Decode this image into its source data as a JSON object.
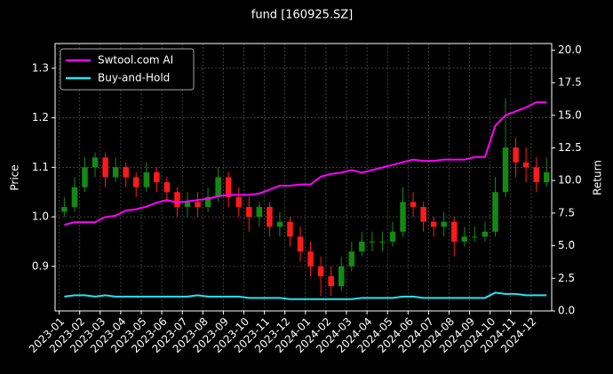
{
  "chart_data": {
    "type": "candlestick",
    "title": "fund [160925.SZ]",
    "y_label": "Price",
    "y2_label": "Return",
    "x": [
      0.25,
      0.75,
      1.25,
      1.75,
      2.25,
      2.75,
      3.25,
      3.75,
      4.25,
      4.75,
      5.25,
      5.75,
      6.25,
      6.75,
      7.25,
      7.75,
      8.25,
      8.75,
      9.25,
      9.75,
      10.25,
      10.75,
      11.25,
      11.75,
      12.25,
      12.75,
      13.25,
      13.75,
      14.25,
      14.75,
      15.25,
      15.75,
      16.25,
      16.75,
      17.25,
      17.75,
      18.25,
      18.75,
      19.25,
      19.75,
      20.25,
      20.75,
      21.25,
      21.75,
      22.25,
      22.75,
      23.25,
      23.75
    ],
    "open": [
      1.01,
      1.02,
      1.06,
      1.1,
      1.12,
      1.08,
      1.1,
      1.08,
      1.06,
      1.09,
      1.07,
      1.05,
      1.02,
      1.03,
      1.02,
      1.04,
      1.08,
      1.04,
      1.02,
      1.0,
      1.02,
      0.98,
      0.99,
      0.96,
      0.93,
      0.9,
      0.88,
      0.86,
      0.9,
      0.93,
      0.95,
      0.95,
      0.95,
      0.97,
      1.03,
      1.02,
      0.99,
      0.98,
      0.99,
      0.95,
      0.96,
      0.96,
      0.97,
      1.05,
      1.14,
      1.11,
      1.1,
      1.07
    ],
    "high": [
      1.04,
      1.08,
      1.12,
      1.13,
      1.13,
      1.12,
      1.11,
      1.09,
      1.11,
      1.1,
      1.08,
      1.06,
      1.05,
      1.05,
      1.06,
      1.1,
      1.09,
      1.06,
      1.04,
      1.03,
      1.03,
      1.01,
      1.0,
      0.98,
      0.95,
      0.92,
      0.9,
      0.92,
      0.95,
      0.97,
      0.97,
      0.97,
      0.99,
      1.06,
      1.05,
      1.03,
      1.0,
      1.01,
      1.0,
      0.98,
      0.98,
      0.99,
      1.08,
      1.24,
      1.16,
      1.14,
      1.12,
      1.12
    ],
    "low": [
      1.0,
      1.01,
      1.05,
      1.08,
      1.06,
      1.07,
      1.06,
      1.04,
      1.05,
      1.05,
      1.03,
      1.0,
      1.0,
      1.0,
      1.01,
      1.03,
      1.02,
      1.0,
      0.97,
      0.98,
      0.96,
      0.96,
      0.94,
      0.91,
      0.88,
      0.84,
      0.84,
      0.85,
      0.89,
      0.92,
      0.93,
      0.93,
      0.94,
      0.96,
      1.0,
      0.97,
      0.96,
      0.96,
      0.92,
      0.94,
      0.95,
      0.95,
      0.96,
      1.04,
      1.08,
      1.07,
      1.05,
      1.06
    ],
    "close": [
      1.02,
      1.06,
      1.1,
      1.12,
      1.08,
      1.1,
      1.08,
      1.06,
      1.09,
      1.07,
      1.05,
      1.02,
      1.03,
      1.02,
      1.04,
      1.08,
      1.04,
      1.02,
      1.0,
      1.02,
      0.98,
      0.99,
      0.96,
      0.93,
      0.9,
      0.88,
      0.86,
      0.9,
      0.93,
      0.95,
      0.95,
      0.95,
      0.97,
      1.03,
      1.02,
      0.99,
      0.98,
      0.99,
      0.95,
      0.96,
      0.96,
      0.97,
      1.05,
      1.14,
      1.11,
      1.1,
      1.07,
      1.09
    ],
    "up_color": "#138a13",
    "down_color": "#ff1a1a",
    "series": [
      {
        "name": "Swtool.com AI",
        "color": "#ff00ff",
        "axis": "y2",
        "values": [
          6.6,
          6.8,
          6.8,
          6.8,
          7.2,
          7.3,
          7.7,
          7.8,
          8.0,
          8.3,
          8.5,
          8.3,
          8.4,
          8.5,
          8.6,
          8.8,
          8.9,
          8.9,
          8.9,
          9.0,
          9.3,
          9.6,
          9.6,
          9.7,
          9.7,
          10.3,
          10.5,
          10.6,
          10.8,
          10.6,
          10.8,
          11.0,
          11.2,
          11.4,
          11.6,
          11.5,
          11.5,
          11.6,
          11.6,
          11.6,
          11.8,
          11.8,
          14.2,
          15.0,
          15.3,
          15.6,
          16.0,
          16.0
        ]
      },
      {
        "name": "Buy-and-Hold",
        "color": "#22e5f5",
        "axis": "y2",
        "values": [
          1.1,
          1.2,
          1.2,
          1.1,
          1.2,
          1.1,
          1.1,
          1.1,
          1.1,
          1.1,
          1.1,
          1.1,
          1.1,
          1.2,
          1.1,
          1.1,
          1.1,
          1.1,
          1.0,
          1.0,
          1.0,
          1.0,
          0.9,
          0.9,
          0.9,
          0.9,
          0.9,
          0.9,
          0.9,
          1.0,
          1.0,
          1.0,
          1.0,
          1.1,
          1.1,
          1.0,
          1.0,
          1.0,
          1.0,
          1.0,
          1.0,
          1.0,
          1.4,
          1.3,
          1.3,
          1.2,
          1.2,
          1.2
        ]
      }
    ],
    "xlim": [
      -0.2,
      24.0
    ],
    "xticks": [
      {
        "value": 0,
        "label": "2023-01"
      },
      {
        "value": 1,
        "label": "2023-02"
      },
      {
        "value": 2,
        "label": "2023-03"
      },
      {
        "value": 3,
        "label": "2023-04"
      },
      {
        "value": 4,
        "label": "2023-05"
      },
      {
        "value": 5,
        "label": "2023-06"
      },
      {
        "value": 6,
        "label": "2023-07"
      },
      {
        "value": 7,
        "label": "2023-08"
      },
      {
        "value": 8,
        "label": "2023-09"
      },
      {
        "value": 9,
        "label": "2023-10"
      },
      {
        "value": 10,
        "label": "2023-11"
      },
      {
        "value": 11,
        "label": "2023-12"
      },
      {
        "value": 12,
        "label": "2024-01"
      },
      {
        "value": 13,
        "label": "2024-02"
      },
      {
        "value": 14,
        "label": "2024-03"
      },
      {
        "value": 15,
        "label": "2024-04"
      },
      {
        "value": 16,
        "label": "2024-05"
      },
      {
        "value": 17,
        "label": "2024-06"
      },
      {
        "value": 18,
        "label": "2024-07"
      },
      {
        "value": 19,
        "label": "2024-08"
      },
      {
        "value": 20,
        "label": "2024-09"
      },
      {
        "value": 21,
        "label": "2024-10"
      },
      {
        "value": 22,
        "label": "2024-11"
      },
      {
        "value": 23,
        "label": "2024-12"
      }
    ],
    "ylim": [
      0.81,
      1.35
    ],
    "yticks": [
      0.9,
      {
        "value": 1.0,
        "label": "1.0"
      },
      1.1,
      1.2,
      1.3
    ],
    "y2lim": [
      0,
      20.5
    ],
    "y2ticks": [
      {
        "value": 0,
        "label": "0.0"
      },
      2.5,
      {
        "value": 5,
        "label": "5.0"
      },
      7.5,
      {
        "value": 10,
        "label": "10.0"
      },
      12.5,
      {
        "value": 15,
        "label": "15.0"
      },
      17.5,
      {
        "value": 20,
        "label": "20.0"
      }
    ],
    "grid": true,
    "legend": "upper left"
  }
}
